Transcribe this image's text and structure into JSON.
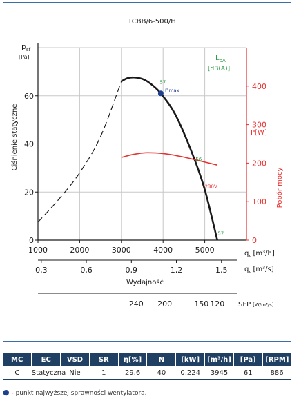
{
  "chart_data": {
    "type": "line",
    "title": "TCBB/6-500/H",
    "ylabel": {
      "symbol": "p",
      "sub": "sf",
      "unit": "[Pa]",
      "name": "Ciśnienie statyczne"
    },
    "y2label": {
      "symbol": "P",
      "unit": "[W]",
      "name": "Pobór mocy"
    },
    "xlabel": "Wydajność",
    "x_primary": {
      "ticks": [
        "1000",
        "2000",
        "3000",
        "4000",
        "5000"
      ],
      "unit_symbol": "q",
      "unit_sub": "v",
      "unit": "[m³/h]"
    },
    "x_secondary": {
      "ticks": [
        "0,3",
        "0,6",
        "0,9",
        "1,2",
        "1,5"
      ],
      "unit_symbol": "q",
      "unit_sub": "v",
      "unit": "[m³/s]"
    },
    "sfp_axis": {
      "ticks": [
        "240",
        "200",
        "150",
        "120"
      ],
      "label": "SFP",
      "unit": "[W/m³/s]"
    },
    "xlim": [
      1000,
      6000
    ],
    "ylim": [
      0,
      80
    ],
    "y2lim": [
      0,
      500
    ],
    "yticks": [
      "0",
      "20",
      "40",
      "60"
    ],
    "y2ticks": [
      "0",
      "100",
      "200",
      "300",
      "400"
    ],
    "lpa_label": {
      "main": "L",
      "sub": "pA",
      "unit": "[dB(A)]"
    },
    "series": [
      {
        "role": "pressure-dashed",
        "color": "#1a1a1a",
        "x": [
          1000,
          1500,
          2000,
          2500,
          3000
        ],
        "y": [
          7.5,
          17,
          28,
          43,
          66
        ]
      },
      {
        "role": "pressure-solid",
        "color": "#1a1a1a",
        "x": [
          3000,
          3150,
          3300,
          3500,
          3700,
          3945,
          4300,
          4700,
          5000,
          5300
        ],
        "y": [
          66,
          67.3,
          67.6,
          67,
          65,
          61,
          52,
          36,
          21,
          0
        ]
      },
      {
        "role": "power",
        "color": "#e8312f",
        "x": [
          3000,
          3300,
          3600,
          4000,
          4400,
          4800,
          5300
        ],
        "y": [
          215,
          223,
          227,
          225,
          218,
          208,
          195
        ]
      }
    ],
    "annotations": [
      {
        "text": "57",
        "x": 3920,
        "y": 65,
        "color": "#2e9b46",
        "kind": "lpa"
      },
      {
        "text": "56",
        "x": 4780,
        "y": 33,
        "color": "#2e9b46",
        "kind": "lpa"
      },
      {
        "text": "57",
        "x": 5310,
        "y": 2.2,
        "color": "#2e9b46",
        "kind": "lpa"
      },
      {
        "text": "230V",
        "x": 5000,
        "y": 21.7,
        "color": "#e8312f",
        "kind": "voltage"
      }
    ],
    "point": {
      "x": 3945,
      "y": 61,
      "label": "η",
      "label_sub": "max",
      "color": "#1f3f8f"
    },
    "grid": true
  },
  "table": {
    "headers": [
      "MC",
      "EC",
      "VSD",
      "SR",
      "η[%]",
      "N",
      "[kW]",
      "[m³/h]",
      "[Pa]",
      "[RPM]"
    ],
    "row": [
      "C",
      "Statyczna",
      "Nie",
      "1",
      "29,6",
      "40",
      "0,224",
      "3945",
      "61",
      "886"
    ]
  },
  "footnote": "- punkt najwyższej sprawności wentylatora.",
  "colors": {
    "accent_blue": "#1f3f63",
    "power_red": "#e8312f",
    "lpa_green": "#2e9b46"
  }
}
